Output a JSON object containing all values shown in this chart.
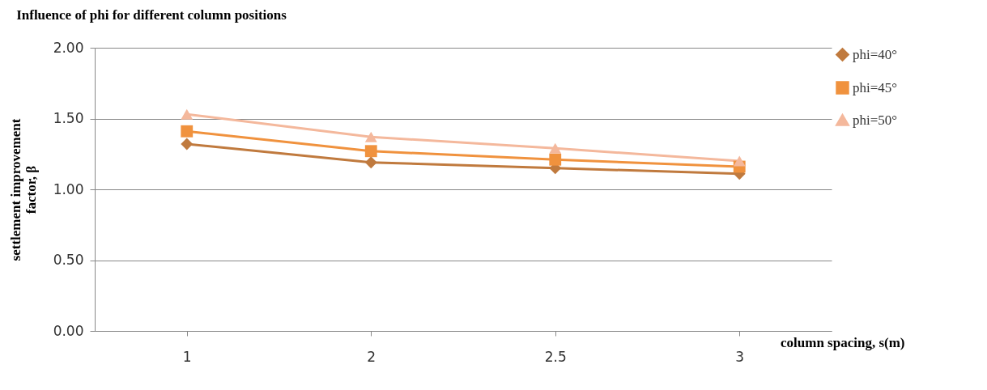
{
  "chart_data": {
    "type": "line",
    "title": "Influence of phi for different  column positions",
    "xlabel": "column spacing, s(m)",
    "ylabel": "settlement improvement factor, β",
    "categories": [
      "1",
      "2",
      "2.5",
      "3"
    ],
    "series": [
      {
        "name": "phi=40°",
        "color": "#c07a3e",
        "marker": "diamond",
        "values": [
          1.32,
          1.19,
          1.15,
          1.11
        ]
      },
      {
        "name": "phi=45°",
        "color": "#f0923e",
        "marker": "square",
        "values": [
          1.41,
          1.27,
          1.21,
          1.16
        ]
      },
      {
        "name": "phi=50°",
        "color": "#f4b89c",
        "marker": "triangle",
        "values": [
          1.53,
          1.37,
          1.29,
          1.2
        ]
      }
    ],
    "ylim": [
      0,
      2
    ],
    "yticks": [
      {
        "value": 0,
        "label": "0.00"
      },
      {
        "value": 0.5,
        "label": "0.50"
      },
      {
        "value": 1,
        "label": "1.00"
      },
      {
        "value": 1.5,
        "label": "1.50"
      },
      {
        "value": 2,
        "label": "2.00"
      }
    ],
    "grid": "y",
    "legend": "right"
  }
}
